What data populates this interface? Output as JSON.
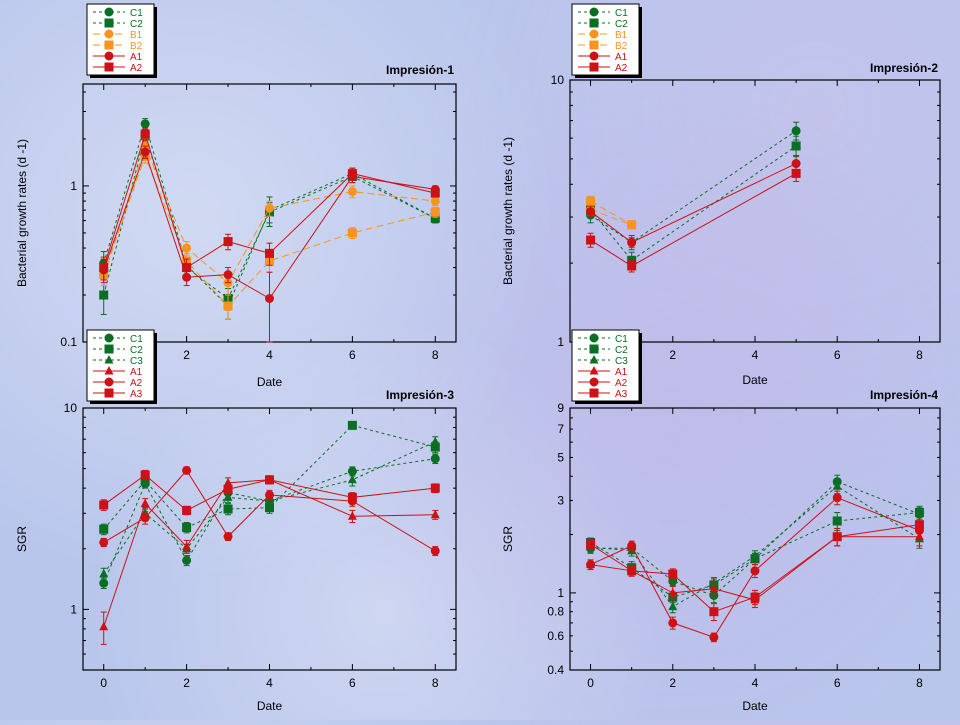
{
  "colors": {
    "green": "#0a6e23",
    "orange": "#f7941d",
    "red": "#cc1216"
  },
  "chart_data": [
    {
      "type": "line",
      "title": "Impresión-1",
      "xlabel": "Date",
      "ylabel": "Bacterial growth rates (d -1)",
      "xlim": [
        -0.5,
        8.5
      ],
      "xticks": [
        2,
        4,
        6,
        8
      ],
      "yscale": "log",
      "ylim": [
        0.1,
        4.5
      ],
      "ylabels": [
        {
          "v": 0.1,
          "t": "0.1"
        },
        {
          "v": 1,
          "t": "1"
        }
      ],
      "legend": "top-left",
      "series": [
        {
          "name": "C1",
          "color": "green",
          "marker": "circle",
          "dash": "3,3",
          "x": [
            0,
            1,
            2,
            3,
            4,
            6,
            8
          ],
          "y": [
            0.32,
            2.5,
            0.31,
            0.17,
            0.7,
            1.2,
            0.62
          ],
          "err": [
            0.06,
            0.2,
            0.04,
            0.03,
            0.15,
            0.1,
            0.04
          ]
        },
        {
          "name": "C2",
          "color": "green",
          "marker": "square",
          "dash": "3,3",
          "x": [
            0,
            1,
            2,
            3,
            4,
            6,
            8
          ],
          "y": [
            0.2,
            2.1,
            0.3,
            0.19,
            0.68,
            1.15,
            0.62
          ],
          "err": [
            0.05,
            0.2,
            0.04,
            0.03,
            0.1,
            0.1,
            0.04
          ]
        },
        {
          "name": "B1",
          "color": "orange",
          "marker": "circle",
          "dash": "7,4",
          "x": [
            0,
            1,
            2,
            3,
            4,
            6,
            8
          ],
          "y": [
            0.27,
            1.8,
            0.4,
            0.24,
            0.72,
            0.92,
            0.8
          ],
          "err": [
            0.04,
            0.2,
            0.04,
            0.04,
            0.08,
            0.08,
            0.05
          ]
        },
        {
          "name": "B2",
          "color": "orange",
          "marker": "square",
          "dash": "7,4",
          "x": [
            0,
            1,
            2,
            3,
            4,
            6,
            8
          ],
          "y": [
            0.27,
            1.55,
            0.33,
            0.17,
            0.33,
            0.5,
            0.68
          ],
          "err": [
            0.04,
            0.15,
            0.04,
            0.03,
            0.05,
            0.04,
            0.05
          ]
        },
        {
          "name": "A1",
          "color": "red",
          "marker": "circle",
          "dash": "",
          "x": [
            0,
            1,
            2,
            3,
            4,
            6,
            8
          ],
          "y": [
            0.29,
            1.65,
            0.26,
            0.27,
            0.19,
            1.15,
            0.95
          ],
          "err": [
            0.05,
            0.15,
            0.03,
            0.03,
            0.09,
            0.1,
            0.05
          ]
        },
        {
          "name": "A2",
          "color": "red",
          "marker": "square",
          "dash": "",
          "x": [
            0,
            1,
            2,
            3,
            4,
            6,
            8
          ],
          "y": [
            0.3,
            2.15,
            0.3,
            0.44,
            0.37,
            1.2,
            0.9
          ],
          "err": [
            0.05,
            0.2,
            0.04,
            0.05,
            0.06,
            0.1,
            0.05
          ]
        }
      ]
    },
    {
      "type": "line",
      "title": "Impresión-2",
      "xlabel": "Date",
      "ylabel": "Bacterial growth rates (d -1)",
      "xlim": [
        -0.5,
        8.5
      ],
      "xticks": [
        2,
        4,
        6,
        8
      ],
      "yscale": "log",
      "ylim": [
        1,
        10
      ],
      "ylabels": [
        {
          "v": 1,
          "t": "1"
        },
        {
          "v": 10,
          "t": "10"
        }
      ],
      "legend": "top-left",
      "series": [
        {
          "name": "C1",
          "color": "green",
          "marker": "circle",
          "dash": "3,3",
          "x": [
            0,
            1,
            5
          ],
          "y": [
            3.05,
            2.4,
            6.4
          ],
          "err": [
            0.2,
            0.15,
            0.5
          ]
        },
        {
          "name": "C2",
          "color": "green",
          "marker": "square",
          "dash": "3,3",
          "x": [
            0,
            1,
            5
          ],
          "y": [
            3.2,
            2.05,
            5.6
          ],
          "err": [
            0.2,
            0.15,
            0.5
          ]
        },
        {
          "name": "B1",
          "color": "orange",
          "marker": "circle",
          "dash": "7,4",
          "x": [
            0,
            1
          ],
          "y": [
            3.2,
            2.8
          ],
          "err": [
            0.15,
            0.1
          ]
        },
        {
          "name": "B2",
          "color": "orange",
          "marker": "square",
          "dash": "7,4",
          "x": [
            0,
            1
          ],
          "y": [
            3.45,
            2.8
          ],
          "err": [
            0.15,
            0.1
          ]
        },
        {
          "name": "A1",
          "color": "red",
          "marker": "circle",
          "dash": "",
          "x": [
            0,
            1,
            5
          ],
          "y": [
            3.15,
            2.4,
            4.8
          ],
          "err": [
            0.15,
            0.1,
            0.35
          ]
        },
        {
          "name": "A2",
          "color": "red",
          "marker": "square",
          "dash": "",
          "x": [
            0,
            1,
            5
          ],
          "y": [
            2.45,
            1.95,
            4.4
          ],
          "err": [
            0.15,
            0.1,
            0.3
          ]
        }
      ]
    },
    {
      "type": "line",
      "title": "Impresión-3",
      "xlabel": "Date",
      "ylabel": "SGR",
      "xlim": [
        -0.5,
        8.5
      ],
      "xticks": [
        0,
        2,
        4,
        6,
        8
      ],
      "yscale": "log",
      "ylim": [
        0.5,
        10
      ],
      "ylabels": [
        {
          "v": 1,
          "t": "1"
        },
        {
          "v": 10,
          "t": "10"
        }
      ],
      "legend": "top-left",
      "series": [
        {
          "name": "C1",
          "color": "green",
          "marker": "circle",
          "dash": "3,3",
          "x": [
            0,
            1,
            2,
            3,
            4,
            6,
            8
          ],
          "y": [
            1.35,
            4.2,
            1.75,
            3.8,
            3.45,
            4.85,
            5.6
          ],
          "err": [
            0.08,
            0.2,
            0.1,
            0.2,
            0.2,
            0.25,
            0.3
          ]
        },
        {
          "name": "C2",
          "color": "green",
          "marker": "square",
          "dash": "3,3",
          "x": [
            0,
            1,
            2,
            3,
            4,
            6,
            8
          ],
          "y": [
            2.5,
            4.35,
            2.55,
            3.15,
            3.2,
            8.2,
            6.4
          ],
          "err": [
            0.15,
            0.2,
            0.15,
            0.2,
            0.2,
            0.3,
            0.4
          ]
        },
        {
          "name": "C3",
          "color": "green",
          "marker": "triangle",
          "dash": "3,3",
          "x": [
            0,
            1,
            2,
            3,
            4,
            6,
            8
          ],
          "y": [
            1.5,
            3.0,
            2.0,
            3.6,
            3.45,
            4.4,
            6.8
          ],
          "err": [
            0.1,
            0.2,
            0.1,
            0.2,
            0.2,
            0.3,
            0.4
          ]
        },
        {
          "name": "A1",
          "color": "red",
          "marker": "triangle",
          "dash": "",
          "x": [
            0,
            1,
            2,
            3,
            4,
            6,
            8
          ],
          "y": [
            0.82,
            3.35,
            2.05,
            4.25,
            4.4,
            2.9,
            2.95
          ],
          "err": [
            0.15,
            0.2,
            0.15,
            0.25,
            0.2,
            0.2,
            0.15
          ]
        },
        {
          "name": "A2",
          "color": "red",
          "marker": "circle",
          "dash": "",
          "x": [
            0,
            1,
            2,
            3,
            4,
            6,
            8
          ],
          "y": [
            2.15,
            2.85,
            4.9,
            2.3,
            3.7,
            3.45,
            1.95
          ],
          "err": [
            0.1,
            0.2,
            0.2,
            0.1,
            0.2,
            0.2,
            0.1
          ]
        },
        {
          "name": "A3",
          "color": "red",
          "marker": "square",
          "dash": "",
          "x": [
            0,
            1,
            2,
            3,
            4,
            6,
            8
          ],
          "y": [
            3.3,
            4.65,
            3.1,
            3.95,
            4.4,
            3.6,
            4.0
          ],
          "err": [
            0.2,
            0.25,
            0.15,
            0.2,
            0.2,
            0.2,
            0.2
          ]
        }
      ]
    },
    {
      "type": "line",
      "title": "Impresión-4",
      "xlabel": "Date",
      "ylabel": "SGR",
      "xlim": [
        -0.5,
        8.5
      ],
      "xticks": [
        0,
        2,
        4,
        6,
        8
      ],
      "yscale": "log",
      "ylim": [
        0.4,
        9
      ],
      "ylabels": [
        {
          "v": 0.4,
          "t": "0.4"
        },
        {
          "v": 0.6,
          "t": "0.6"
        },
        {
          "v": 0.8,
          "t": "0.8"
        },
        {
          "v": 1,
          "t": "1"
        },
        {
          "v": 3,
          "t": "3"
        },
        {
          "v": 5,
          "t": "5"
        },
        {
          "v": 7,
          "t": "7"
        },
        {
          "v": 9,
          "t": "9"
        }
      ],
      "legend": "top-left",
      "series": [
        {
          "name": "C1",
          "color": "green",
          "marker": "circle",
          "dash": "3,3",
          "x": [
            0,
            1,
            2,
            3,
            4,
            6,
            8
          ],
          "y": [
            1.7,
            1.7,
            1.15,
            0.97,
            1.5,
            3.75,
            2.55
          ],
          "err": [
            0.1,
            0.1,
            0.06,
            0.08,
            0.1,
            0.3,
            0.2
          ]
        },
        {
          "name": "C2",
          "color": "green",
          "marker": "square",
          "dash": "3,3",
          "x": [
            0,
            1,
            2,
            3,
            4,
            6,
            8
          ],
          "y": [
            1.82,
            1.35,
            0.95,
            1.1,
            1.5,
            2.35,
            2.6
          ],
          "err": [
            0.1,
            0.1,
            0.06,
            0.08,
            0.1,
            0.25,
            0.2
          ]
        },
        {
          "name": "C3",
          "color": "green",
          "marker": "triangle",
          "dash": "3,3",
          "x": [
            0,
            1,
            2,
            3,
            4,
            6,
            8
          ],
          "y": [
            1.72,
            1.65,
            0.85,
            1.12,
            1.55,
            3.55,
            1.9
          ],
          "err": [
            0.1,
            0.1,
            0.06,
            0.08,
            0.1,
            0.3,
            0.2
          ]
        },
        {
          "name": "A1",
          "color": "red",
          "marker": "triangle",
          "dash": "",
          "x": [
            0,
            1,
            2,
            3,
            4,
            6,
            8
          ],
          "y": [
            1.4,
            1.3,
            1.0,
            1.05,
            0.92,
            1.95,
            1.95
          ],
          "err": [
            0.08,
            0.08,
            0.08,
            0.1,
            0.08,
            0.2,
            0.2
          ]
        },
        {
          "name": "A2",
          "color": "red",
          "marker": "circle",
          "dash": "",
          "x": [
            0,
            1,
            2,
            3,
            4,
            6,
            8
          ],
          "y": [
            1.4,
            1.75,
            0.7,
            0.59,
            1.3,
            3.1,
            2.1
          ],
          "err": [
            0.08,
            0.1,
            0.05,
            0.03,
            0.1,
            0.25,
            0.2
          ]
        },
        {
          "name": "A3",
          "color": "red",
          "marker": "square",
          "dash": "",
          "x": [
            0,
            1,
            2,
            3,
            4,
            6,
            8
          ],
          "y": [
            1.78,
            1.3,
            1.25,
            0.8,
            0.95,
            1.95,
            2.25
          ],
          "err": [
            0.08,
            0.08,
            0.08,
            0.08,
            0.08,
            0.2,
            0.2
          ]
        }
      ]
    }
  ]
}
